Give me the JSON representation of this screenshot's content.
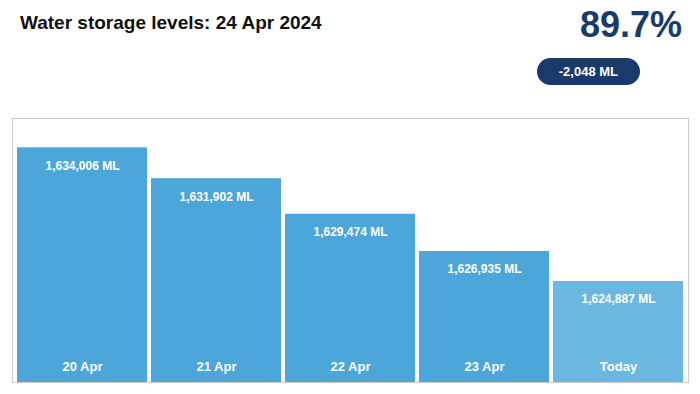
{
  "chart_data": {
    "type": "bar",
    "title": "Water storage levels: 24 Apr 2024",
    "annotations": [
      {
        "text": "89.7%",
        "color": "#1a3a6b"
      },
      {
        "text": "-2,048 ML",
        "color": "#1a3a6b"
      }
    ],
    "categories": [
      "20 Apr",
      "21 Apr",
      "22 Apr",
      "23 Apr",
      "Today"
    ],
    "values": [
      1634006,
      1631902,
      1629474,
      1626935,
      1624887
    ],
    "value_labels": [
      "1,634,006 ML",
      "1,631,902 ML",
      "1,629,474 ML",
      "1,626,935 ML",
      "1,624,887 ML"
    ],
    "colors": [
      "#4da6d9",
      "#4da6d9",
      "#4da6d9",
      "#4da6d9",
      "#6ab8e0"
    ],
    "ylim": [
      1618000,
      1636006
    ],
    "data_labels": true,
    "tick_labels": false,
    "grid": false
  }
}
